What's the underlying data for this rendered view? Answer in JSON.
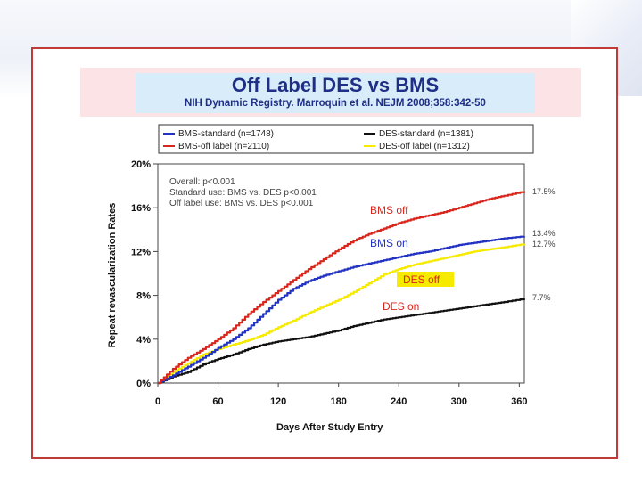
{
  "slide": {
    "title": "Off Label DES vs BMS",
    "subtitle": "NIH Dynamic Registry. Marroquin et al. NEJM 2008;358:342-50"
  },
  "chart_data": {
    "type": "line",
    "xlabel": "Days After Study Entry",
    "ylabel": "Repeat revascularization Rates",
    "xlim": [
      0,
      365
    ],
    "ylim": [
      0,
      20
    ],
    "x_ticks": [
      "0",
      "60",
      "120",
      "180",
      "240",
      "300",
      "360"
    ],
    "y_ticks": [
      "0%",
      "4%",
      "8%",
      "12%",
      "16%",
      "20%"
    ],
    "legend": {
      "placement": "top",
      "entries": [
        "BMS-standard (n=1748)",
        "DES-standard (n=1381)",
        "BMS-off label (n=2110)",
        "DES-off label (n=1312)"
      ]
    },
    "stats": [
      "Overall:  p<0.001",
      "Standard use:  BMS vs. DES p<0.001",
      "Off label use:  BMS vs. DES p<0.001"
    ],
    "series": [
      {
        "name": "BMS-off label (n=2110)",
        "color": "#d9261c",
        "label": "BMS off",
        "end_label": "17.5%",
        "x": [
          0,
          15,
          30,
          45,
          60,
          75,
          90,
          105,
          120,
          135,
          150,
          165,
          180,
          195,
          210,
          225,
          240,
          255,
          270,
          285,
          300,
          315,
          330,
          345,
          365
        ],
        "y": [
          0,
          1.3,
          2.3,
          3.1,
          4.0,
          5.0,
          6.3,
          7.4,
          8.4,
          9.4,
          10.4,
          11.3,
          12.2,
          13.0,
          13.6,
          14.1,
          14.6,
          15.0,
          15.3,
          15.6,
          16.0,
          16.4,
          16.8,
          17.1,
          17.5
        ]
      },
      {
        "name": "BMS-standard (n=1748)",
        "color": "#2233c4",
        "label": "BMS on",
        "end_label": "13.4%",
        "x": [
          0,
          15,
          30,
          45,
          60,
          75,
          90,
          105,
          120,
          135,
          150,
          165,
          180,
          195,
          210,
          225,
          240,
          255,
          270,
          285,
          300,
          315,
          330,
          345,
          365
        ],
        "y": [
          0,
          0.7,
          1.5,
          2.3,
          3.2,
          4.0,
          5.0,
          6.3,
          7.6,
          8.6,
          9.3,
          9.8,
          10.2,
          10.6,
          10.9,
          11.2,
          11.5,
          11.8,
          12.0,
          12.3,
          12.6,
          12.8,
          13.0,
          13.2,
          13.4
        ]
      },
      {
        "name": "DES-off label (n=1312)",
        "color": "#f5ea00",
        "label": "DES off",
        "end_label": "12.7%",
        "x": [
          0,
          15,
          30,
          45,
          60,
          75,
          90,
          105,
          120,
          135,
          150,
          165,
          180,
          195,
          210,
          225,
          240,
          255,
          270,
          285,
          300,
          315,
          330,
          345,
          365
        ],
        "y": [
          0,
          1.0,
          1.8,
          2.6,
          3.1,
          3.5,
          3.9,
          4.4,
          5.1,
          5.7,
          6.4,
          7.0,
          7.6,
          8.3,
          9.1,
          9.9,
          10.4,
          10.8,
          11.1,
          11.4,
          11.7,
          12.0,
          12.2,
          12.4,
          12.7
        ]
      },
      {
        "name": "DES-standard (n=1381)",
        "color": "#111111",
        "label": "DES on",
        "end_label": "7.7%",
        "x": [
          0,
          15,
          30,
          45,
          60,
          75,
          90,
          105,
          120,
          135,
          150,
          165,
          180,
          195,
          210,
          225,
          240,
          255,
          270,
          285,
          300,
          315,
          330,
          345,
          365
        ],
        "y": [
          0,
          0.6,
          1.0,
          1.7,
          2.2,
          2.6,
          3.1,
          3.5,
          3.8,
          4.0,
          4.2,
          4.5,
          4.8,
          5.2,
          5.5,
          5.8,
          6.0,
          6.2,
          6.4,
          6.6,
          6.8,
          7.0,
          7.2,
          7.4,
          7.7
        ]
      }
    ]
  }
}
